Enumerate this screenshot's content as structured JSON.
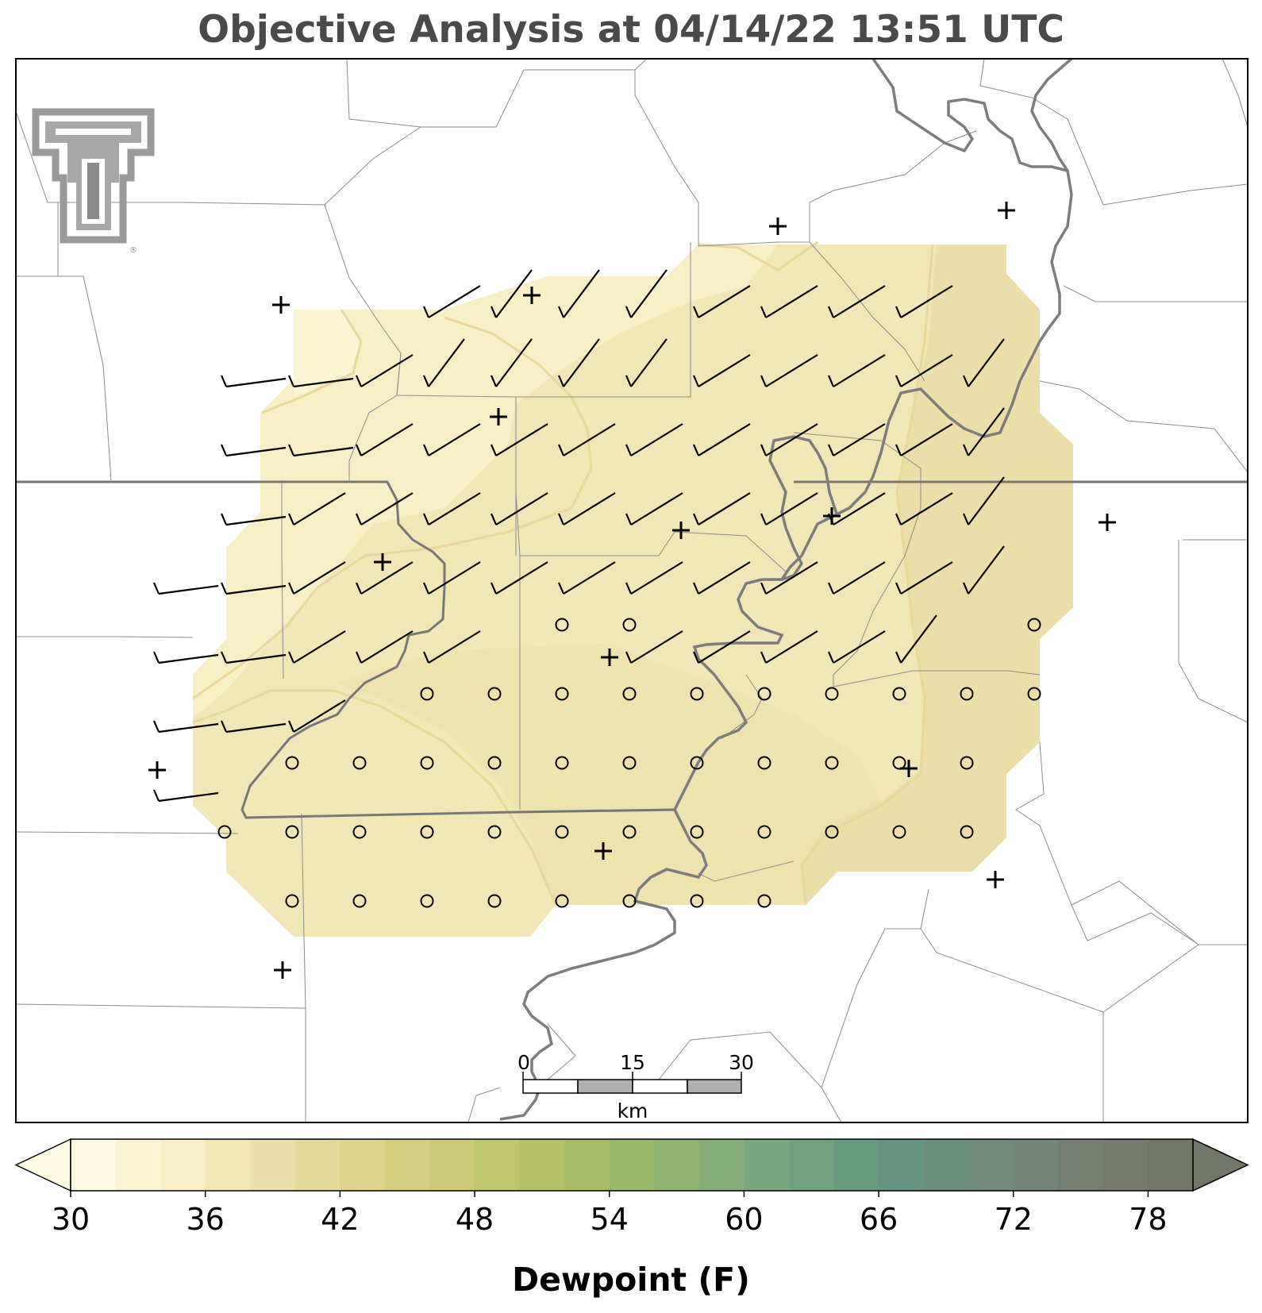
{
  "title": "Objective Analysis at 04/14/22 13:51 UTC",
  "colorbar": {
    "label": "Dewpoint (F)",
    "min": 30,
    "max": 80,
    "step": 2,
    "ticks": [
      "30",
      "36",
      "42",
      "48",
      "54",
      "60",
      "66",
      "72",
      "78"
    ],
    "extend": "both",
    "colors": [
      "#fdfbe3",
      "#faf4d2",
      "#f6eec5",
      "#f1e6b6",
      "#ebdea8",
      "#e6d99c",
      "#dfd38d",
      "#d5cd80",
      "#cbcb77",
      "#c0c66e",
      "#b4c166",
      "#a7bd65",
      "#9ab86a",
      "#8fb371",
      "#84ad77",
      "#79a87c",
      "#6fa27f",
      "#679b7f",
      "#659580",
      "#6c8e7d",
      "#718a7a",
      "#738677",
      "#747f72",
      "#747a6e",
      "#707668"
    ]
  },
  "scale_bar": {
    "labels": [
      "0",
      "15",
      "30"
    ],
    "unit": "km"
  },
  "logo": {
    "name": "texas-tech-double-t-logo",
    "mark": "®"
  },
  "stations": {
    "missing_symbol": "+",
    "calm_symbol": "o"
  },
  "colors": {
    "map_border": "#000000",
    "county_lines": "#8c8c8c",
    "state_lines": "#777777",
    "rivers": "#7d7d7d",
    "barbs": "#000000",
    "title": "#4a4a4a"
  }
}
